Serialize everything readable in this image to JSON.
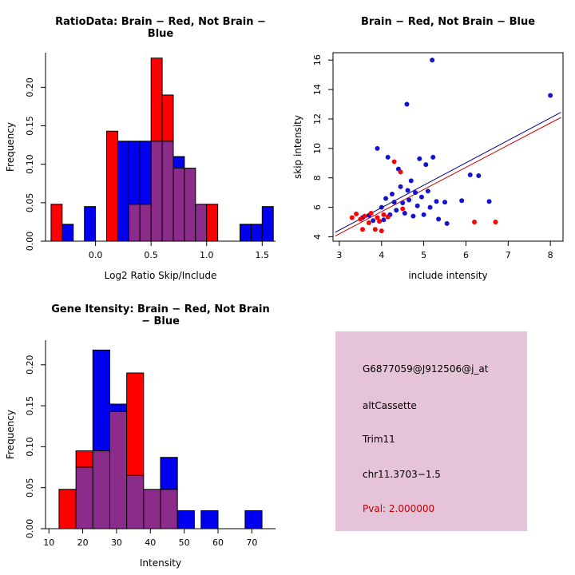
{
  "page": {
    "background": "#ffffff"
  },
  "palette": {
    "red": "#FF0000",
    "blue": "#0000EE",
    "overlap": "#8B2C8B",
    "point_red": "#FF0000",
    "point_blue": "#1414CC",
    "axis": "#000000"
  },
  "chart_data": [
    {
      "type": "bar",
      "subtype": "overlaid-histogram",
      "panel": "top-left",
      "title": "RatioData: Brain − Red, Not Brain − Blue",
      "xlabel": "Log2 Ratio Skip/Include",
      "ylabel": "Frequency",
      "xlim": [
        -0.45,
        1.62
      ],
      "ylim": [
        0,
        0.245
      ],
      "grid": false,
      "xticks": [
        0.0,
        0.5,
        1.0,
        1.5
      ],
      "xtick_labels": [
        "0.0",
        "0.5",
        "1.0",
        "1.5"
      ],
      "yticks": [
        0.0,
        0.05,
        0.1,
        0.15,
        0.2
      ],
      "ytick_labels": [
        "0.00",
        "0.05",
        "0.10",
        "0.15",
        "0.20"
      ],
      "bin_width": 0.1,
      "series": [
        {
          "name": "Brain",
          "color": "red",
          "bins": [
            {
              "x": -0.4,
              "h": 0.048
            },
            {
              "x": 0.1,
              "h": 0.143
            },
            {
              "x": 0.3,
              "h": 0.048
            },
            {
              "x": 0.4,
              "h": 0.048
            },
            {
              "x": 0.5,
              "h": 0.238
            },
            {
              "x": 0.6,
              "h": 0.19
            },
            {
              "x": 0.7,
              "h": 0.095
            },
            {
              "x": 0.8,
              "h": 0.095
            },
            {
              "x": 0.9,
              "h": 0.048
            },
            {
              "x": 1.0,
              "h": 0.048
            }
          ]
        },
        {
          "name": "Not Brain",
          "color": "blue",
          "bins": [
            {
              "x": -0.3,
              "h": 0.022
            },
            {
              "x": -0.1,
              "h": 0.045
            },
            {
              "x": 0.2,
              "h": 0.13
            },
            {
              "x": 0.3,
              "h": 0.13
            },
            {
              "x": 0.4,
              "h": 0.13
            },
            {
              "x": 0.5,
              "h": 0.13
            },
            {
              "x": 0.6,
              "h": 0.13
            },
            {
              "x": 0.7,
              "h": 0.11
            },
            {
              "x": 0.8,
              "h": 0.095
            },
            {
              "x": 0.9,
              "h": 0.048
            },
            {
              "x": 1.3,
              "h": 0.022
            },
            {
              "x": 1.4,
              "h": 0.022
            },
            {
              "x": 1.5,
              "h": 0.045
            }
          ]
        }
      ]
    },
    {
      "type": "scatter",
      "panel": "top-right",
      "title": "Brain − Red, Not Brain − Blue",
      "xlabel": "include intensity",
      "ylabel": "skip intensity",
      "xlim": [
        2.85,
        8.3
      ],
      "ylim": [
        3.7,
        16.5
      ],
      "grid": false,
      "xticks": [
        3,
        4,
        5,
        6,
        7,
        8
      ],
      "xtick_labels": [
        "3",
        "4",
        "5",
        "6",
        "7",
        "8"
      ],
      "yticks": [
        4,
        6,
        8,
        10,
        12,
        14,
        16
      ],
      "ytick_labels": [
        "4",
        "6",
        "8",
        "10",
        "12",
        "14",
        "16"
      ],
      "series": [
        {
          "name": "Not Brain",
          "color": "blue",
          "points": [
            [
              3.55,
              5.3
            ],
            [
              3.7,
              5.45
            ],
            [
              3.8,
              5.1
            ],
            [
              3.9,
              10.0
            ],
            [
              4.0,
              6.0
            ],
            [
              4.05,
              5.15
            ],
            [
              4.1,
              6.6
            ],
            [
              4.15,
              9.4
            ],
            [
              4.2,
              5.5
            ],
            [
              4.25,
              6.9
            ],
            [
              4.3,
              6.35
            ],
            [
              4.35,
              5.8
            ],
            [
              4.4,
              8.6
            ],
            [
              4.45,
              7.4
            ],
            [
              4.5,
              6.3
            ],
            [
              4.55,
              5.6
            ],
            [
              4.6,
              13.0
            ],
            [
              4.62,
              7.15
            ],
            [
              4.65,
              6.5
            ],
            [
              4.7,
              7.8
            ],
            [
              4.75,
              5.4
            ],
            [
              4.8,
              7.0
            ],
            [
              4.85,
              6.1
            ],
            [
              4.9,
              9.3
            ],
            [
              4.95,
              6.7
            ],
            [
              5.0,
              5.5
            ],
            [
              5.05,
              8.9
            ],
            [
              5.1,
              7.1
            ],
            [
              5.15,
              6.0
            ],
            [
              5.2,
              16.0
            ],
            [
              5.22,
              9.4
            ],
            [
              5.3,
              6.4
            ],
            [
              5.35,
              5.2
            ],
            [
              5.5,
              6.35
            ],
            [
              5.55,
              4.9
            ],
            [
              5.9,
              6.45
            ],
            [
              6.1,
              8.2
            ],
            [
              6.3,
              8.15
            ],
            [
              6.55,
              6.4
            ],
            [
              8.0,
              13.6
            ]
          ]
        },
        {
          "name": "Brain",
          "color": "red",
          "points": [
            [
              3.3,
              5.3
            ],
            [
              3.4,
              5.55
            ],
            [
              3.5,
              5.2
            ],
            [
              3.55,
              4.5
            ],
            [
              3.6,
              5.4
            ],
            [
              3.7,
              4.95
            ],
            [
              3.75,
              5.6
            ],
            [
              3.85,
              4.5
            ],
            [
              3.9,
              5.3
            ],
            [
              3.95,
              5.05
            ],
            [
              4.0,
              4.4
            ],
            [
              4.05,
              5.5
            ],
            [
              4.15,
              5.35
            ],
            [
              4.3,
              9.1
            ],
            [
              4.45,
              8.4
            ],
            [
              4.5,
              5.9
            ],
            [
              6.2,
              5.0
            ],
            [
              6.7,
              5.0
            ]
          ]
        }
      ],
      "fit_lines": [
        {
          "color": "#CC0000",
          "x1": 2.9,
          "y1": 4.05,
          "x2": 8.25,
          "y2": 12.1
        },
        {
          "color": "#00008B",
          "x1": 2.9,
          "y1": 4.3,
          "x2": 8.25,
          "y2": 12.45
        }
      ]
    },
    {
      "type": "bar",
      "subtype": "overlaid-histogram",
      "panel": "bottom-left",
      "title": "Gene Itensity: Brain − Red, Not Brain − Blue",
      "xlabel": "Intensity",
      "ylabel": "Frequency",
      "xlim": [
        9,
        77
      ],
      "ylim": [
        0,
        0.23
      ],
      "grid": false,
      "xticks": [
        10,
        20,
        30,
        40,
        50,
        60,
        70
      ],
      "xtick_labels": [
        "10",
        "20",
        "30",
        "40",
        "50",
        "60",
        "70"
      ],
      "yticks": [
        0.0,
        0.05,
        0.1,
        0.15,
        0.2
      ],
      "ytick_labels": [
        "0.00",
        "0.05",
        "0.10",
        "0.15",
        "0.20"
      ],
      "bin_width": 5,
      "series": [
        {
          "name": "Brain",
          "color": "red",
          "bins": [
            {
              "x": 13,
              "h": 0.048
            },
            {
              "x": 18,
              "h": 0.095
            },
            {
              "x": 23,
              "h": 0.095
            },
            {
              "x": 28,
              "h": 0.143
            },
            {
              "x": 33,
              "h": 0.19
            },
            {
              "x": 38,
              "h": 0.048
            },
            {
              "x": 43,
              "h": 0.048
            }
          ]
        },
        {
          "name": "Not Brain",
          "color": "blue",
          "bins": [
            {
              "x": 18,
              "h": 0.075
            },
            {
              "x": 23,
              "h": 0.218
            },
            {
              "x": 28,
              "h": 0.152
            },
            {
              "x": 33,
              "h": 0.065
            },
            {
              "x": 38,
              "h": 0.048
            },
            {
              "x": 43,
              "h": 0.087
            },
            {
              "x": 48,
              "h": 0.022
            },
            {
              "x": 55,
              "h": 0.022
            },
            {
              "x": 68,
              "h": 0.022
            }
          ]
        }
      ]
    }
  ],
  "info_panel": {
    "background": "#E5C3D8",
    "probeset": "G6877059@J912506@j_at",
    "event_type": "altCassette",
    "gene": "Trim11",
    "location": "chr11.3703−1.5",
    "pval": "Pval: 2.000000",
    "pval_color": "#C00000"
  }
}
